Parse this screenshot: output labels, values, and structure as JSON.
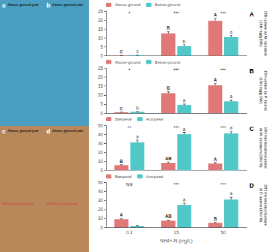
{
  "chart_data": [
    {
      "type": "bar",
      "title": "A",
      "categories": [
        "0.1",
        "15",
        "50"
      ],
      "ylabel": "15N uptake by M. spicatum\n(15N mg/g DW)",
      "ylim": [
        0,
        25
      ],
      "yticks": [
        0,
        5,
        10,
        15,
        20,
        25
      ],
      "grid": false,
      "legend": "top",
      "tick_labels": "y",
      "series": [
        {
          "name": "Above-ground",
          "color": "#e07878",
          "values": [
            0.3,
            12.5,
            19.5
          ],
          "errors": [
            0.05,
            1.0,
            1.2
          ],
          "letters": [
            "C",
            "B",
            "A"
          ]
        },
        {
          "name": "Below-ground",
          "color": "#50c8c8",
          "values": [
            0.4,
            5.5,
            10.5
          ],
          "errors": [
            0.05,
            0.6,
            0.9
          ],
          "letters": [
            "c",
            "b",
            "a"
          ]
        }
      ],
      "significance": [
        "*",
        "***",
        "***"
      ]
    },
    {
      "type": "bar",
      "title": "B",
      "categories": [
        "0.1",
        "15",
        "50"
      ],
      "ylabel": "15N uptake by P. lucens\n(15N mg/g DW)",
      "ylim": [
        0,
        25
      ],
      "yticks": [
        0,
        5,
        10,
        15,
        20,
        25
      ],
      "grid": false,
      "legend": "top",
      "tick_labels": "y",
      "series": [
        {
          "name": "Above-ground",
          "color": "#e07878",
          "values": [
            0.4,
            11.0,
            15.5
          ],
          "errors": [
            0.05,
            0.9,
            1.0
          ],
          "letters": [
            "C",
            "B",
            "A"
          ]
        },
        {
          "name": "Below-ground",
          "color": "#50c8c8",
          "values": [
            0.7,
            4.5,
            6.5
          ],
          "errors": [
            0.05,
            0.5,
            0.7
          ],
          "letters": [
            "b",
            "a",
            "a"
          ]
        }
      ],
      "significance": [
        "*",
        "***",
        "***"
      ]
    },
    {
      "type": "bar",
      "title": "C",
      "categories": [
        "0.1",
        "15",
        "50"
      ],
      "ylabel": "15N translocation/uptake\nof M. spicatum (15N %)",
      "ylim": [
        0,
        50
      ],
      "yticks": [
        0,
        10,
        20,
        30,
        40,
        50
      ],
      "grid": false,
      "legend": "top",
      "tick_labels": "y",
      "series": [
        {
          "name": "Basipetal",
          "color": "#e07878",
          "values": [
            5.5,
            8.0,
            7.5
          ],
          "errors": [
            0.5,
            0.8,
            0.7
          ],
          "letters": [
            "B",
            "AB",
            "A"
          ]
        },
        {
          "name": "Acropetal",
          "color": "#50c8c8",
          "values": [
            31.0,
            40.0,
            41.0
          ],
          "errors": [
            2.5,
            2.0,
            2.0
          ],
          "letters": [
            "a",
            "a",
            "a"
          ]
        }
      ],
      "significance": [
        "**",
        "***",
        "***"
      ]
    },
    {
      "type": "bar",
      "title": "D",
      "categories": [
        "0.1",
        "15",
        "50"
      ],
      "xlabel": "NH4+-N (mg/L)",
      "ylabel": "15N translocation/uptake\nof P. lucens (15N %)",
      "ylim": [
        0,
        50
      ],
      "yticks": [
        0,
        10,
        20,
        30,
        40,
        50
      ],
      "grid": false,
      "legend": "top",
      "series": [
        {
          "name": "Basipetal",
          "color": "#e07878",
          "values": [
            9.0,
            7.5,
            5.0
          ],
          "errors": [
            0.7,
            0.6,
            0.5
          ],
          "letters": [
            "A",
            "AB",
            "B"
          ]
        },
        {
          "name": "Acropetal",
          "color": "#50c8c8",
          "values": [
            1.5,
            25.0,
            31.0
          ],
          "errors": [
            0.3,
            2.0,
            2.5
          ],
          "letters": [
            null,
            "a",
            "a"
          ]
        }
      ],
      "significance": [
        "NS",
        "***",
        "***"
      ]
    }
  ],
  "annotations": [
    {
      "label": "a",
      "texts": [
        "Above-ground part"
      ]
    },
    {
      "label": "b",
      "texts": [
        "Above-ground part"
      ]
    },
    {
      "label": "c",
      "texts": [
        "Above-ground part",
        "Below ground part"
      ]
    },
    {
      "label": "d",
      "texts": [
        "Above-ground part",
        "Below ground part"
      ]
    }
  ]
}
